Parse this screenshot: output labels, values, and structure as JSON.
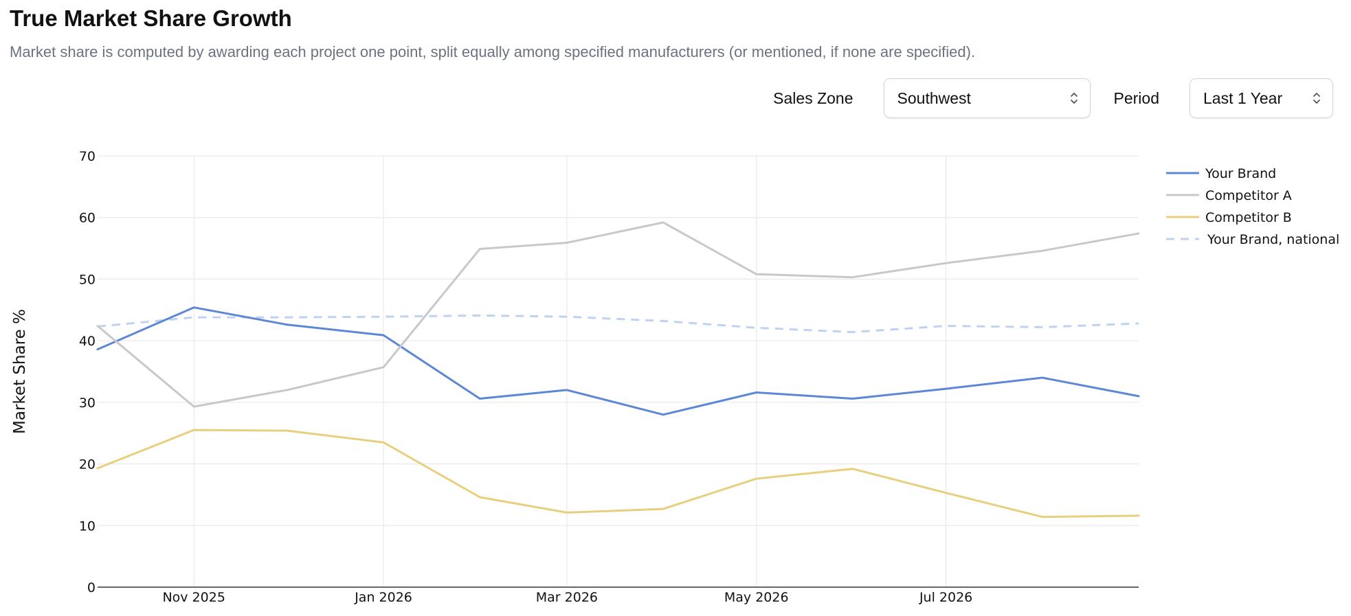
{
  "header": {
    "title": "True Market Share Growth",
    "subtitle": "Market share is computed by awarding each project one point, split equally among specified manufacturers (or mentioned, if none are specified)."
  },
  "filters": {
    "zone_label": "Sales Zone",
    "zone_value": "Southwest",
    "period_label": "Period",
    "period_value": "Last 1 Year"
  },
  "icons": {
    "select_chevron": "chevron-up-down-icon"
  },
  "chart_data": {
    "type": "line",
    "x": [
      "2025-10-01",
      "2025-11-01",
      "2025-12-01",
      "2026-01-01",
      "2026-02-01",
      "2026-03-01",
      "2026-04-01",
      "2026-05-01",
      "2026-06-01",
      "2026-07-01",
      "2026-08-01",
      "2026-09-01"
    ],
    "x_tick_labels": [
      "Nov 2025",
      "Jan 2026",
      "Mar 2026",
      "May 2026",
      "Jul 2026"
    ],
    "y_ticks": [
      0,
      10,
      20,
      30,
      40,
      50,
      60,
      70
    ],
    "ylabel": "Market Share %",
    "ylim": [
      0,
      70
    ],
    "grid": true,
    "legend_position": "top-right",
    "series": [
      {
        "name": "Your Brand",
        "color": "#5b87d6",
        "dashed": false,
        "values": [
          38.6,
          45.4,
          42.6,
          40.9,
          30.6,
          32.0,
          28.0,
          31.6,
          30.6,
          32.2,
          34.0,
          31.0
        ]
      },
      {
        "name": "Competitor A",
        "color": "#c8c8c8",
        "dashed": false,
        "values": [
          42.4,
          29.3,
          32.0,
          35.7,
          54.9,
          55.9,
          59.2,
          50.8,
          50.3,
          52.6,
          54.6,
          57.4
        ]
      },
      {
        "name": "Competitor B",
        "color": "#e8cf7e",
        "dashed": false,
        "values": [
          19.3,
          25.5,
          25.4,
          23.5,
          14.6,
          12.1,
          12.7,
          17.6,
          19.2,
          15.3,
          11.4,
          11.6
        ]
      },
      {
        "name": "Your Brand, national",
        "color": "#bfd2f1",
        "dashed": true,
        "values": [
          42.3,
          43.8,
          43.8,
          43.9,
          44.1,
          43.9,
          43.2,
          42.1,
          41.4,
          42.4,
          42.2,
          42.8
        ]
      }
    ]
  }
}
